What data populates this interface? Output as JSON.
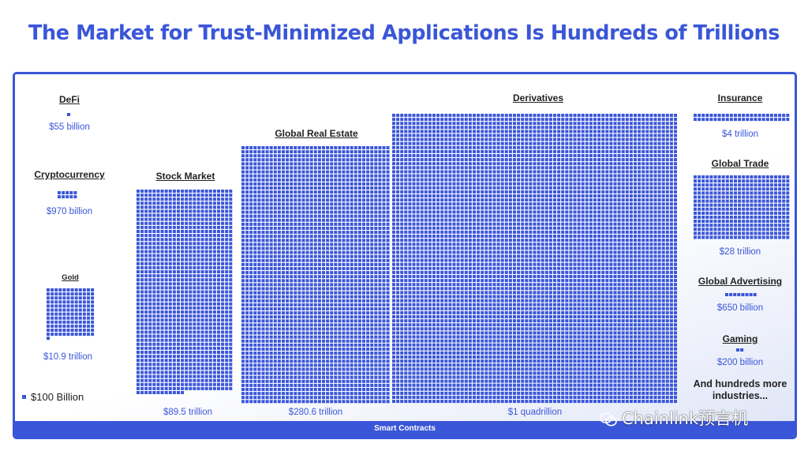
{
  "title": "The Market for Trust-Minimized Applications Is Hundreds of Trillions",
  "footer": "Smart Contracts",
  "legend_label": "$100 Billion",
  "more_industries": "And hundreds more industries...",
  "watermark": "Chainlink预言机",
  "colors": {
    "accent": "#3a56d8",
    "text": "#222222"
  },
  "unit_value": "$100 Billion",
  "categories": [
    {
      "id": "defi",
      "label": "DeFi",
      "value": "$55 billion"
    },
    {
      "id": "crypto",
      "label": "Cryptocurrency",
      "value": "$970 billion"
    },
    {
      "id": "gold",
      "label": "Gold",
      "value": "$10.9 trillion"
    },
    {
      "id": "stock",
      "label": "Stock Market",
      "value": "$89.5 trillion"
    },
    {
      "id": "realestate",
      "label": "Global Real Estate",
      "value": "$280.6 trillion"
    },
    {
      "id": "derivatives",
      "label": "Derivatives",
      "value": "$1 quadrillion"
    },
    {
      "id": "insurance",
      "label": "Insurance",
      "value": "$4 trillion"
    },
    {
      "id": "trade",
      "label": "Global Trade",
      "value": "$28 trillion"
    },
    {
      "id": "advertising",
      "label": "Global Advertising",
      "value": "$650 billion"
    },
    {
      "id": "gaming",
      "label": "Gaming",
      "value": "$200 billion"
    }
  ]
}
